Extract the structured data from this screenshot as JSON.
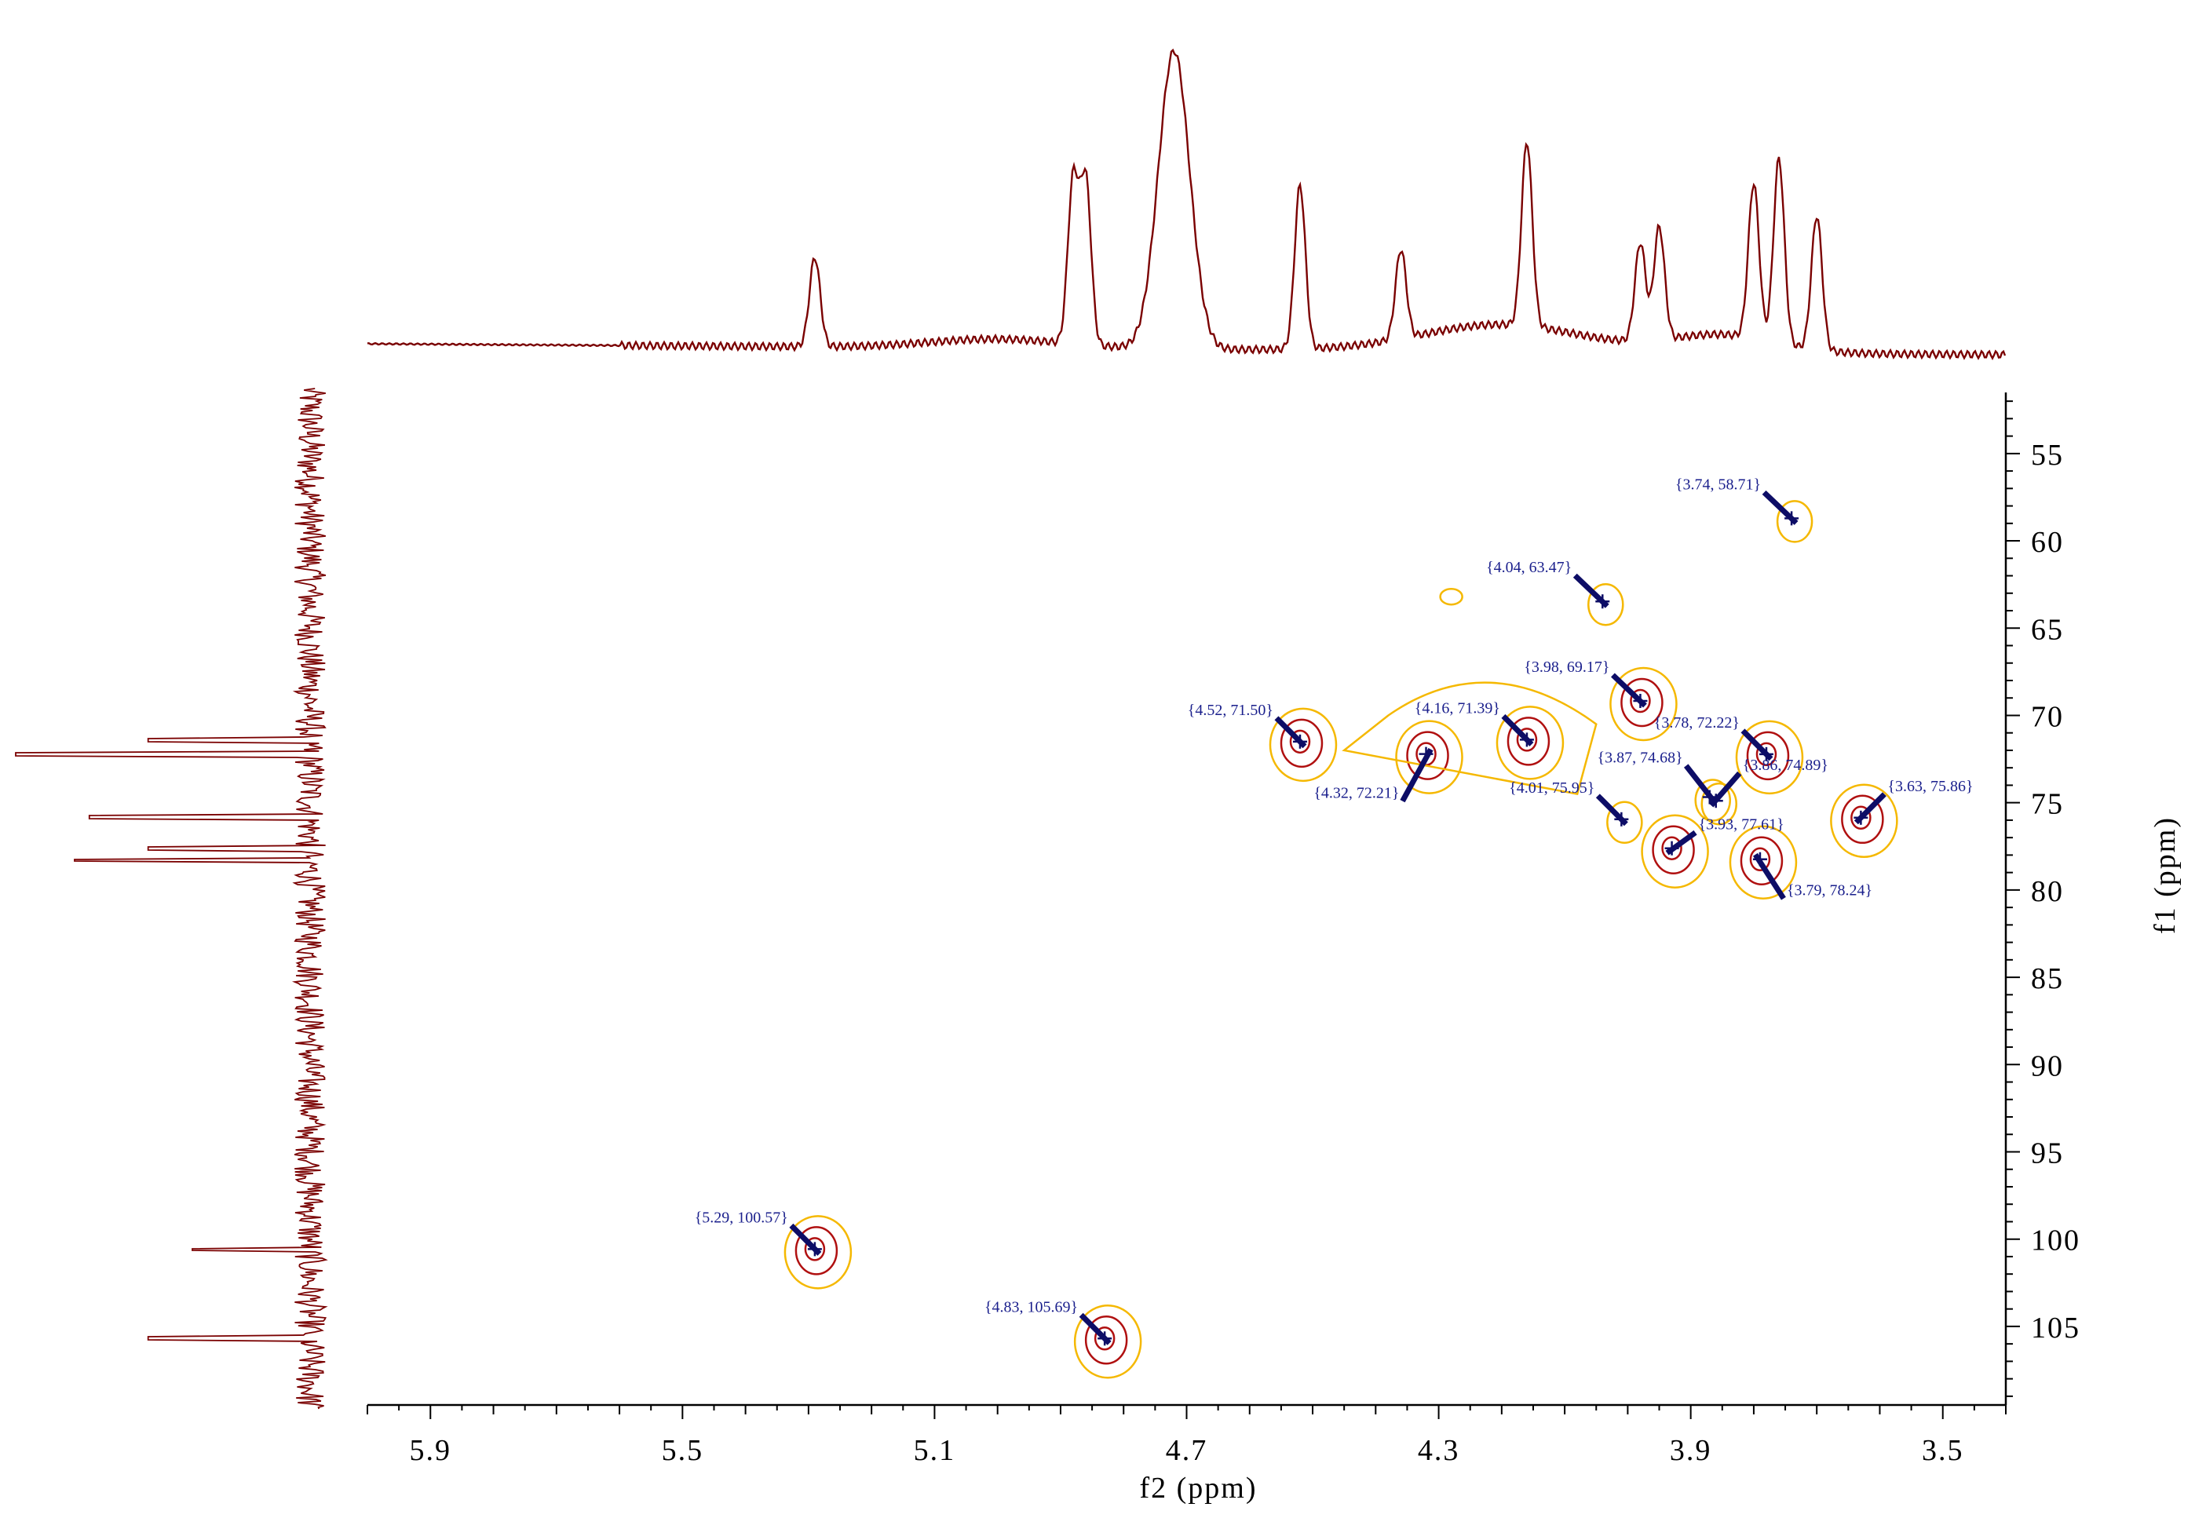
{
  "chart_data": {
    "type": "scatter",
    "title": "",
    "xlabel": "f2 (ppm)",
    "ylabel": "f1 (ppm)",
    "xlim": [
      6.0,
      3.4
    ],
    "ylim": [
      51.5,
      109.5
    ],
    "x_ticks": [
      "5.9",
      "5.5",
      "5.1",
      "4.7",
      "4.3",
      "3.9",
      "3.5"
    ],
    "y_ticks": [
      "55",
      "60",
      "65",
      "70",
      "75",
      "80",
      "85",
      "90",
      "95",
      "100",
      "105"
    ],
    "grid": false,
    "legend": "none",
    "colors": {
      "trace": "#7a0000",
      "contour_outer": "#f5b800",
      "contour_inner": "#b01010",
      "label": "#1a1f8c",
      "arrow": "#0d0d66"
    },
    "peaks": [
      {
        "x": 3.74,
        "y": 58.71,
        "label": "{3.74, 58.71}"
      },
      {
        "x": 4.04,
        "y": 63.47,
        "label": "{4.04, 63.47}"
      },
      {
        "x": 3.98,
        "y": 69.17,
        "label": "{3.98, 69.17}"
      },
      {
        "x": 4.52,
        "y": 71.5,
        "label": "{4.52, 71.50}"
      },
      {
        "x": 4.16,
        "y": 71.39,
        "label": "{4.16, 71.39}"
      },
      {
        "x": 3.78,
        "y": 72.22,
        "label": "{3.78, 72.22}"
      },
      {
        "x": 4.32,
        "y": 72.21,
        "label": "{4.32, 72.21}"
      },
      {
        "x": 3.87,
        "y": 74.68,
        "label": "{3.87, 74.68}"
      },
      {
        "x": 3.86,
        "y": 74.89,
        "label": "{3.86, 74.89}"
      },
      {
        "x": 4.01,
        "y": 75.95,
        "label": "{4.01, 75.95}"
      },
      {
        "x": 3.63,
        "y": 75.86,
        "label": "{3.63, 75.86}"
      },
      {
        "x": 3.93,
        "y": 77.61,
        "label": "{3.93, 77.61}"
      },
      {
        "x": 3.79,
        "y": 78.24,
        "label": "{3.79, 78.24}"
      },
      {
        "x": 5.29,
        "y": 100.57,
        "label": "{5.29, 100.57}"
      },
      {
        "x": 4.83,
        "y": 105.69,
        "label": "{4.83, 105.69}"
      }
    ],
    "h1_projection_peaks": [
      {
        "x": 5.29,
        "height": 0.3
      },
      {
        "x": 4.88,
        "height": 0.55
      },
      {
        "x": 4.86,
        "height": 0.55
      },
      {
        "x": 4.72,
        "height": 1.0
      },
      {
        "x": 4.52,
        "height": 0.55
      },
      {
        "x": 4.36,
        "height": 0.3
      },
      {
        "x": 4.16,
        "height": 0.62
      },
      {
        "x": 3.98,
        "height": 0.33
      },
      {
        "x": 3.95,
        "height": 0.38
      },
      {
        "x": 3.8,
        "height": 0.52
      },
      {
        "x": 3.76,
        "height": 0.62
      },
      {
        "x": 3.7,
        "height": 0.45
      }
    ],
    "c13_projection_peaks": [
      {
        "y": 72.2,
        "height": 1.0
      },
      {
        "y": 71.4,
        "height": 0.55
      },
      {
        "y": 75.8,
        "height": 0.75
      },
      {
        "y": 77.6,
        "height": 0.55
      },
      {
        "y": 78.3,
        "height": 0.8
      },
      {
        "y": 100.6,
        "height": 0.4
      },
      {
        "y": 105.7,
        "height": 0.55
      }
    ]
  }
}
